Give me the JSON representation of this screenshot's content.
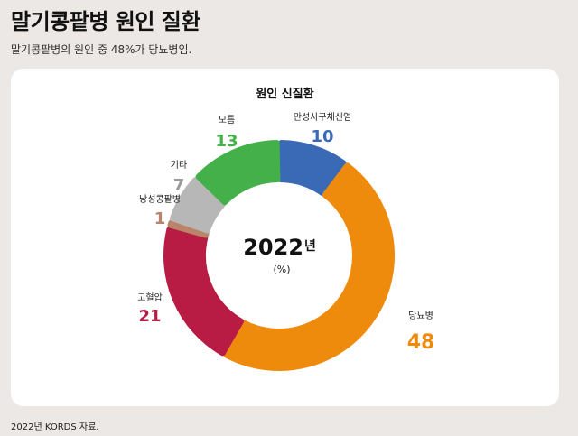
{
  "header": {
    "title": "말기콩팥병 원인 질환",
    "subtitle": "말기콩팥병의 원인 중 48%가 당뇨병임."
  },
  "footer": {
    "source": "2022년 KORDS 자료."
  },
  "chart_data": {
    "type": "pie",
    "donut": true,
    "title": "원인 신질환",
    "center_label": "2022",
    "center_suffix": "년",
    "unit": "(%)",
    "start": "top, clockwise",
    "slices": [
      {
        "name": "만성사구체신염",
        "value": 10,
        "color": "#3a6ab6"
      },
      {
        "name": "당뇨병",
        "value": 48,
        "color": "#ee8a0c"
      },
      {
        "name": "고혈압",
        "value": 21,
        "color": "#b81c44"
      },
      {
        "name": "낭성콩팥병",
        "value": 1,
        "color": "#b98468"
      },
      {
        "name": "기타",
        "value": 7,
        "color": "#b7b7b7"
      },
      {
        "name": "모름",
        "value": 13,
        "color": "#44b049"
      }
    ]
  }
}
